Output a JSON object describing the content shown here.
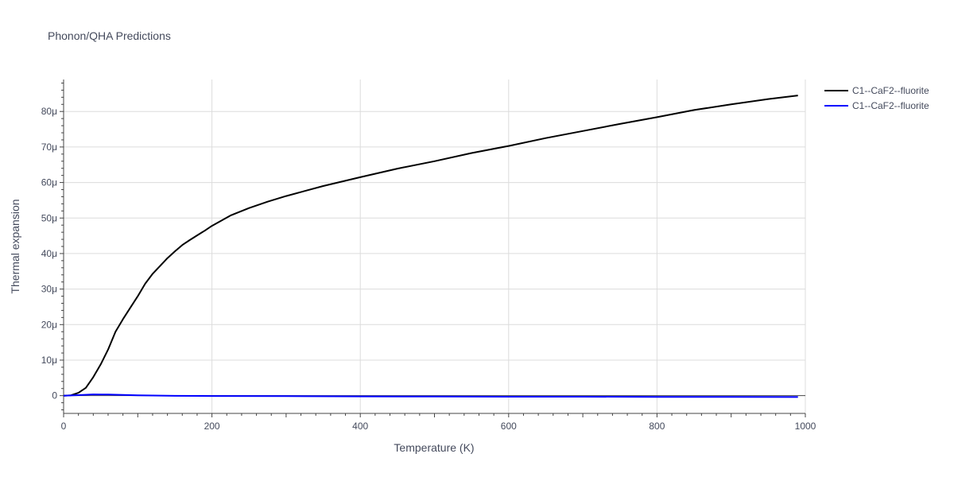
{
  "chart_data": {
    "type": "line",
    "title": "Phonon/QHA Predictions",
    "xlabel": "Temperature (K)",
    "ylabel": "Thermal expansion",
    "xlim": [
      0,
      1000
    ],
    "ylim": [
      -5,
      89
    ],
    "x_ticks": [
      0,
      200,
      400,
      600,
      800,
      1000
    ],
    "x_tick_labels": [
      "0",
      "200",
      "400",
      "600",
      "800",
      "1000"
    ],
    "y_ticks": [
      0,
      10,
      20,
      30,
      40,
      50,
      60,
      70,
      80
    ],
    "y_tick_labels": [
      "0",
      "10μ",
      "20μ",
      "30μ",
      "40μ",
      "50μ",
      "60μ",
      "70μ",
      "80μ"
    ],
    "y_unit_scale": "1e-6",
    "grid": true,
    "legend_position": "top-right",
    "series": [
      {
        "name": "C1--CaF2--fluorite",
        "color": "#000000",
        "x": [
          0,
          10,
          20,
          30,
          40,
          50,
          60,
          70,
          80,
          90,
          100,
          110,
          120,
          130,
          140,
          150,
          160,
          170,
          180,
          190,
          200,
          225,
          250,
          275,
          300,
          350,
          400,
          450,
          500,
          550,
          600,
          650,
          700,
          750,
          800,
          850,
          900,
          950,
          990
        ],
        "y": [
          0,
          0.1,
          0.8,
          2.2,
          5.2,
          8.8,
          13.0,
          18.0,
          21.5,
          24.8,
          28.0,
          31.5,
          34.3,
          36.5,
          38.7,
          40.6,
          42.4,
          43.8,
          45.1,
          46.4,
          47.8,
          50.7,
          52.8,
          54.6,
          56.2,
          59.0,
          61.5,
          63.9,
          66.0,
          68.3,
          70.3,
          72.5,
          74.5,
          76.5,
          78.4,
          80.4,
          82.0,
          83.5,
          84.5
        ]
      },
      {
        "name": "C1--CaF2--fluorite",
        "color": "#0000ff",
        "x": [
          0,
          20,
          40,
          60,
          80,
          100,
          150,
          200,
          300,
          400,
          500,
          600,
          700,
          800,
          900,
          990
        ],
        "y": [
          0,
          0.15,
          0.35,
          0.3,
          0.2,
          0.1,
          -0.05,
          -0.1,
          -0.15,
          -0.2,
          -0.25,
          -0.3,
          -0.3,
          -0.35,
          -0.35,
          -0.4
        ]
      }
    ]
  }
}
